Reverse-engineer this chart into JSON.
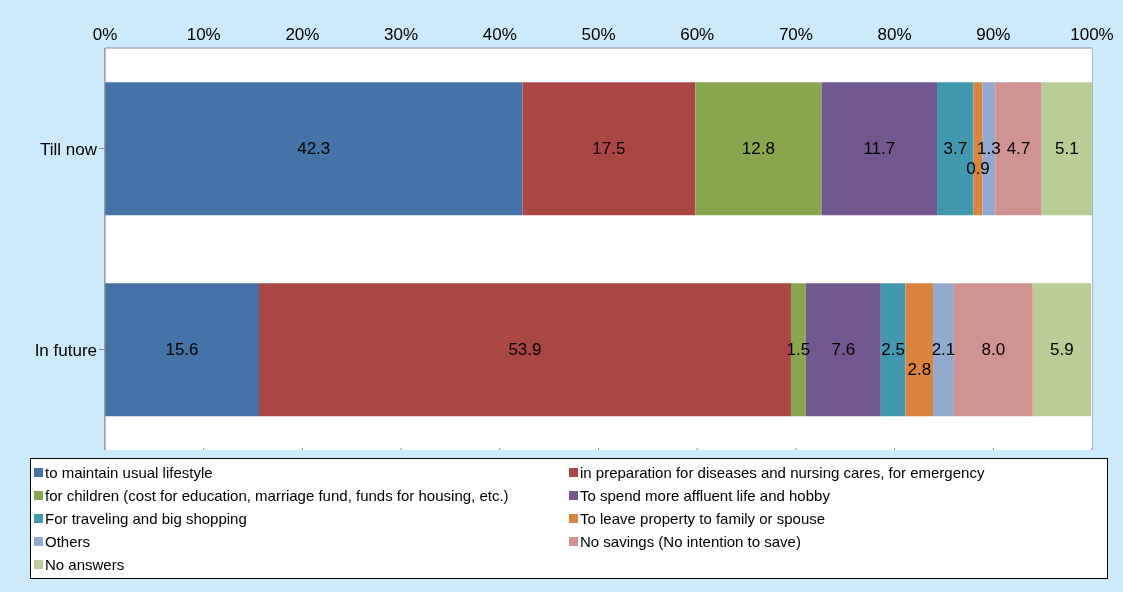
{
  "chart_data": {
    "type": "bar",
    "orientation": "horizontal",
    "stacked": true,
    "categories": [
      "Till now",
      "In future"
    ],
    "series": [
      {
        "name": "to maintain usual lifestyle",
        "color": "#4572a7",
        "values": [
          42.3,
          15.6
        ]
      },
      {
        "name": "in preparation for diseases and nursing cares, for emergency",
        "color": "#aa4643",
        "values": [
          17.5,
          53.9
        ]
      },
      {
        "name": "for children (cost for education, marriage fund, funds for housing, etc.)",
        "color": "#89a54e",
        "values": [
          12.8,
          1.5
        ]
      },
      {
        "name": "To spend more affluent life and hobby",
        "color": "#71588f",
        "values": [
          11.7,
          7.6
        ]
      },
      {
        "name": "For traveling and big shopping",
        "color": "#4198af",
        "values": [
          3.7,
          2.5
        ]
      },
      {
        "name": "To leave property to family or spouse",
        "color": "#db843d",
        "values": [
          0.9,
          2.8
        ]
      },
      {
        "name": "Others",
        "color": "#93a9cf",
        "values": [
          1.3,
          2.1
        ]
      },
      {
        "name": "No savings (No intention to save)",
        "color": "#d19392",
        "values": [
          4.7,
          8.0
        ],
        "value_labels": [
          "4.7",
          "8.0"
        ]
      },
      {
        "name": "No answers",
        "color": "#b9cd96",
        "values": [
          5.1,
          5.9
        ]
      }
    ],
    "xlim": [
      0,
      100
    ],
    "xticks": [
      {
        "value": 0,
        "label": "0%"
      },
      {
        "value": 10,
        "label": "10%"
      },
      {
        "value": 20,
        "label": "20%"
      },
      {
        "value": 30,
        "label": "30%"
      },
      {
        "value": 40,
        "label": "40%"
      },
      {
        "value": 50,
        "label": "50%"
      },
      {
        "value": 60,
        "label": "60%"
      },
      {
        "value": 70,
        "label": "70%"
      },
      {
        "value": 80,
        "label": "80%"
      },
      {
        "value": 90,
        "label": "90%"
      },
      {
        "value": 100,
        "label": "100%"
      }
    ],
    "grid": "x",
    "data_labels": true,
    "legend": "bottom"
  }
}
